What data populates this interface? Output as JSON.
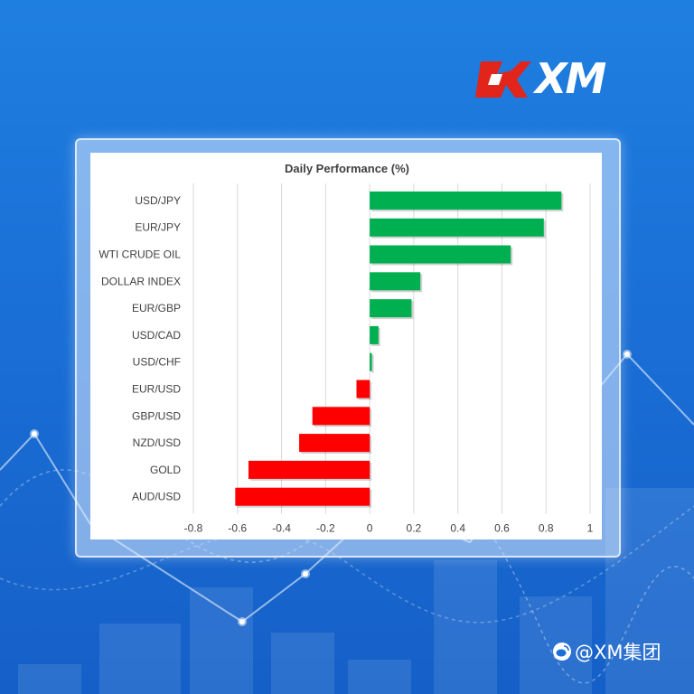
{
  "brand": {
    "logo_text": "XM",
    "colors": {
      "red": "#e1251b",
      "white": "#ffffff",
      "background": "#1a6fd6"
    }
  },
  "watermark": {
    "icon": "weibo-icon",
    "text": "@XM集团"
  },
  "chart_data": {
    "type": "bar",
    "orientation": "horizontal",
    "title": "Daily Performance (%)",
    "categories": [
      "USD/JPY",
      "EUR/JPY",
      "WTI CRUDE OIL",
      "DOLLAR INDEX",
      "EUR/GBP",
      "USD/CAD",
      "USD/CHF",
      "EUR/USD",
      "GBP/USD",
      "NZD/USD",
      "GOLD",
      "AUD/USD"
    ],
    "values": [
      0.87,
      0.79,
      0.64,
      0.23,
      0.19,
      0.04,
      0.01,
      -0.06,
      -0.26,
      -0.32,
      -0.55,
      -0.61
    ],
    "xlim": [
      -0.8,
      1
    ],
    "xticks": [
      "-0.8",
      "-0.6",
      "-0.4",
      "-0.2",
      "0",
      "0.2",
      "0.4",
      "0.6",
      "0.8",
      "1"
    ],
    "xtick_values": [
      -0.8,
      -0.6,
      -0.4,
      -0.2,
      0,
      0.2,
      0.4,
      0.6,
      0.8,
      1
    ],
    "positive_color": "#00b050",
    "negative_color": "#ff0000",
    "grid": true
  }
}
